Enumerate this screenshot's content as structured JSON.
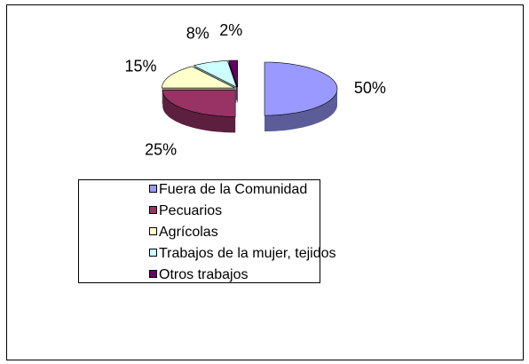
{
  "chart_data": {
    "type": "pie",
    "categories": [
      "Fuera de la Comunidad",
      "Pecuarios",
      "Agrícolas",
      "Trabajos de la mujer, tejidos",
      "Otros trabajos"
    ],
    "values": [
      50,
      25,
      15,
      8,
      2
    ],
    "value_labels": [
      "50%",
      "25%",
      "15%",
      "8%",
      "2%"
    ],
    "colors": [
      "#9999ff",
      "#993366",
      "#ffffcc",
      "#ccffff",
      "#660066"
    ],
    "legend": "bottom"
  }
}
